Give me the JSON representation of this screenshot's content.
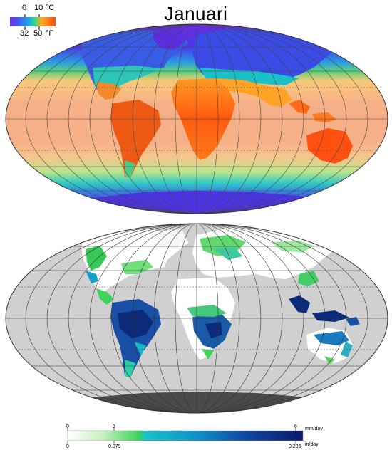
{
  "title": "Januari",
  "temp_legend": {
    "celsius_ticks": [
      "0",
      "10"
    ],
    "celsius_unit": "°C",
    "fahrenheit_ticks": [
      "32",
      "50"
    ],
    "fahrenheit_unit": "°F",
    "colors": [
      "#6a2fd8",
      "#2a6fe8",
      "#19b6e0",
      "#3fd77a",
      "#ffa928",
      "#ff5a12"
    ]
  },
  "precip_legend": {
    "mm_ticks": [
      "0",
      "2",
      "6"
    ],
    "mm_unit": "mm/day",
    "in_ticks": [
      "0",
      "0.079",
      "0.236"
    ],
    "in_unit": "in/day",
    "colors": [
      "#ffffff",
      "#7be27c",
      "#18b7c8",
      "#1260a8",
      "#0a1f6e"
    ]
  },
  "maps": [
    {
      "name": "temperature-map",
      "ocean_color": "#f6b088",
      "pole_color": "#4b2fe0"
    },
    {
      "name": "precipitation-map",
      "ocean_color": "#d0d0d0"
    }
  ]
}
